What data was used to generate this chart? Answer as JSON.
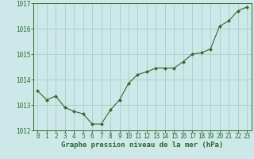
{
  "x": [
    0,
    1,
    2,
    3,
    4,
    5,
    6,
    7,
    8,
    9,
    10,
    11,
    12,
    13,
    14,
    15,
    16,
    17,
    18,
    19,
    20,
    21,
    22,
    23
  ],
  "y": [
    1013.55,
    1013.2,
    1013.35,
    1012.9,
    1012.75,
    1012.65,
    1012.25,
    1012.25,
    1012.8,
    1013.2,
    1013.85,
    1014.2,
    1014.3,
    1014.45,
    1014.45,
    1014.45,
    1014.7,
    1015.0,
    1015.05,
    1015.2,
    1016.1,
    1016.3,
    1016.7,
    1016.85
  ],
  "line_color": "#2d6a2d",
  "marker_color": "#2d6a2d",
  "bg_color": "#cde8e8",
  "grid_color": "#b0d0d0",
  "xlabel": "Graphe pression niveau de la mer (hPa)",
  "xlabel_color": "#2d6a2d",
  "tick_color": "#2d6a2d",
  "ylim": [
    1012.0,
    1017.0
  ],
  "yticks": [
    1012,
    1013,
    1014,
    1015,
    1016,
    1017
  ],
  "xticks": [
    0,
    1,
    2,
    3,
    4,
    5,
    6,
    7,
    8,
    9,
    10,
    11,
    12,
    13,
    14,
    15,
    16,
    17,
    18,
    19,
    20,
    21,
    22,
    23
  ],
  "tick_fontsize": 5.5,
  "xlabel_fontsize": 6.5
}
